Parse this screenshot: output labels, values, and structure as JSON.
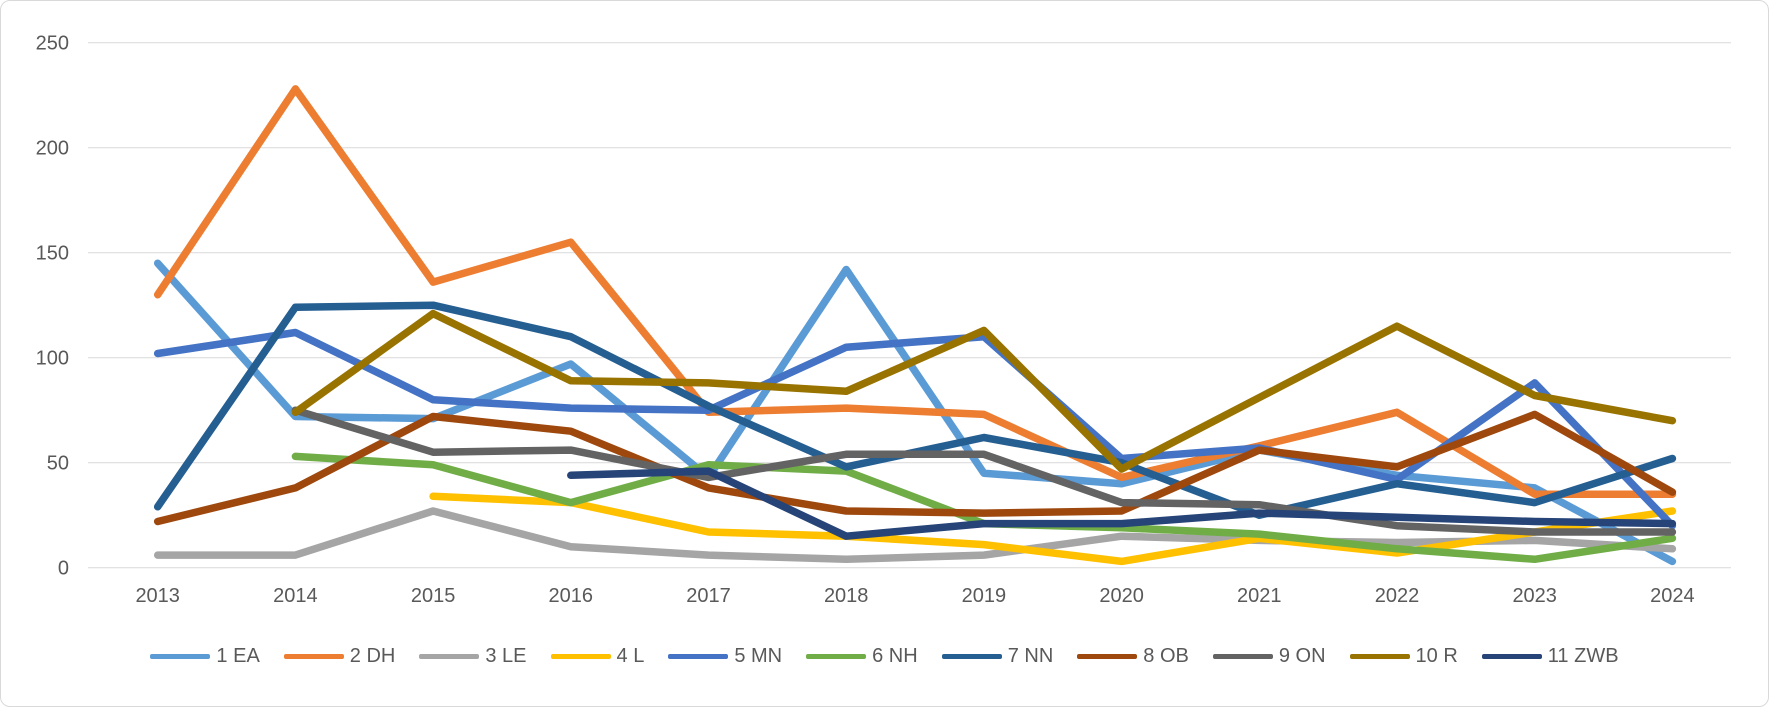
{
  "chart_data": {
    "type": "line",
    "title": "",
    "x_categories": [
      "2013",
      "2014",
      "2015",
      "2016",
      "2017",
      "2018",
      "2019",
      "2020",
      "2021",
      "2022",
      "2023",
      "2024"
    ],
    "y_axis": {
      "min": 0,
      "max": 250,
      "step": 50,
      "tick_labels": [
        "0",
        "50",
        "100",
        "150",
        "200",
        "250"
      ]
    },
    "grid": true,
    "legend_position": "bottom",
    "gridline_color": "#d9d9d9",
    "axis_text_color": "#595959",
    "series": [
      {
        "name": "1 EA",
        "color": "#5B9BD5",
        "values": [
          145,
          72,
          71,
          97,
          43,
          142,
          45,
          40,
          56,
          44,
          38,
          3
        ]
      },
      {
        "name": "2 DH",
        "color": "#ED7D31",
        "values": [
          130,
          228,
          136,
          155,
          74,
          76,
          73,
          43,
          58,
          74,
          35,
          35
        ]
      },
      {
        "name": "3 LE",
        "color": "#A5A5A5",
        "values": [
          6,
          6,
          27,
          10,
          6,
          4,
          6,
          15,
          13,
          12,
          13,
          9
        ]
      },
      {
        "name": "4 L",
        "color": "#FFC000",
        "values": [
          null,
          null,
          34,
          31,
          17,
          15,
          11,
          3,
          14,
          7,
          17,
          27
        ]
      },
      {
        "name": "5 MN",
        "color": "#4472C4",
        "values": [
          102,
          112,
          80,
          76,
          75,
          105,
          110,
          52,
          57,
          42,
          88,
          20
        ]
      },
      {
        "name": "6 NH",
        "color": "#70AD47",
        "values": [
          null,
          53,
          49,
          31,
          49,
          46,
          21,
          19,
          16,
          9,
          4,
          14
        ]
      },
      {
        "name": "7 NN",
        "color": "#255E91",
        "values": [
          29,
          124,
          125,
          110,
          77,
          48,
          62,
          50,
          25,
          40,
          31,
          52
        ]
      },
      {
        "name": "8 OB",
        "color": "#9E480E",
        "values": [
          22,
          38,
          72,
          65,
          38,
          27,
          26,
          27,
          56,
          48,
          73,
          36
        ]
      },
      {
        "name": "9 ON",
        "color": "#636363",
        "values": [
          null,
          75,
          55,
          56,
          43,
          54,
          54,
          31,
          30,
          20,
          17,
          17
        ]
      },
      {
        "name": "10 R",
        "color": "#997300",
        "values": [
          null,
          74,
          121,
          89,
          88,
          84,
          113,
          47,
          81,
          115,
          82,
          70
        ]
      },
      {
        "name": "11 ZWB",
        "color": "#264478",
        "values": [
          null,
          null,
          null,
          44,
          46,
          15,
          21,
          21,
          26,
          24,
          22,
          21
        ]
      }
    ]
  }
}
